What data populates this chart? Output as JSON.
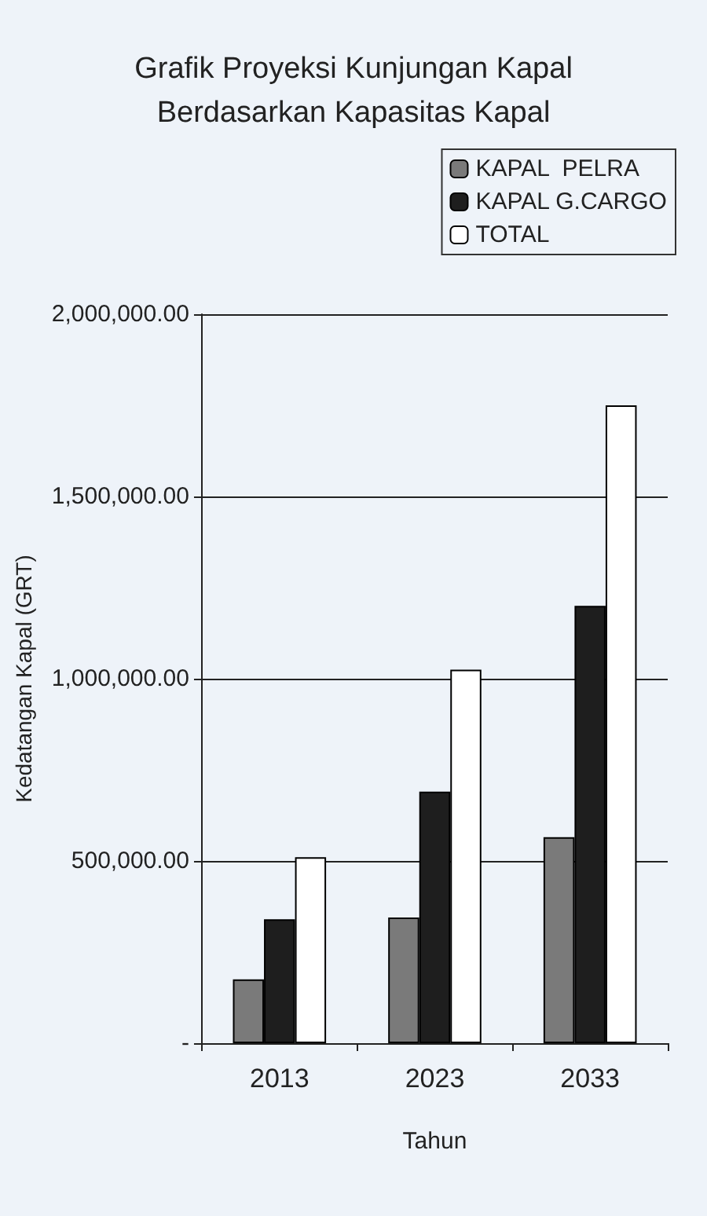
{
  "chart_data": {
    "type": "bar",
    "title": "Grafik Proyeksi Kunjungan Kapal\nBerdasarkan Kapasitas Kapal",
    "xlabel": "Tahun",
    "ylabel": "Kedatangan Kapal (GRT)",
    "categories": [
      "2013",
      "2023",
      "2033"
    ],
    "series": [
      {
        "name": "KAPAL  PELRA",
        "color": "#7a7a7a",
        "values": [
          175000,
          345000,
          565000
        ]
      },
      {
        "name": "KAPAL G.CARGO",
        "color": "#1e1e1e",
        "values": [
          340000,
          690000,
          1200000
        ]
      },
      {
        "name": "TOTAL",
        "color": "#ffffff",
        "values": [
          510000,
          1025000,
          1750000
        ]
      }
    ],
    "ylim": [
      0,
      2000000
    ],
    "yticks": [
      {
        "value": 0,
        "label": "-"
      },
      {
        "value": 500000,
        "label": "500,000.00"
      },
      {
        "value": 1000000,
        "label": "1,000,000.00"
      },
      {
        "value": 1500000,
        "label": "1,500,000.00"
      },
      {
        "value": 2000000,
        "label": "2,000,000.00"
      }
    ],
    "grid": "y",
    "legend": "top right"
  }
}
